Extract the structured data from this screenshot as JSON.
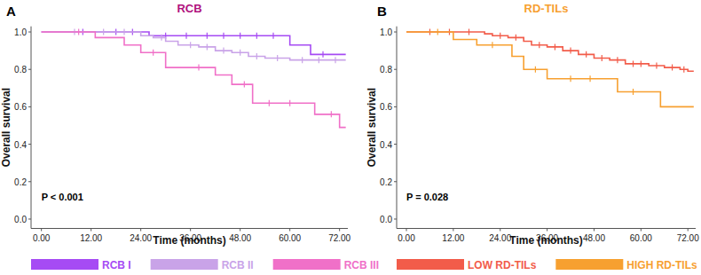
{
  "chart_data": [
    {
      "type": "line",
      "panel": "A",
      "title": "RCB",
      "annotation": "P < 0.001",
      "x_label": "Time (months)",
      "y_label": "Overall survival",
      "xlim": [
        -2.5,
        74
      ],
      "ylim": [
        -0.05,
        1.03
      ],
      "xticks": [
        {
          "value": 0,
          "label": "0.00"
        },
        {
          "value": 12,
          "label": "12.00"
        },
        {
          "value": 24,
          "label": "24.00"
        },
        {
          "value": 36,
          "label": "36.00"
        },
        {
          "value": 48,
          "label": "48.00"
        },
        {
          "value": 60,
          "label": "60.00"
        },
        {
          "value": 72,
          "label": "72.00"
        }
      ],
      "yticks": [
        {
          "value": 0,
          "label": "0.0"
        },
        {
          "value": 0.2,
          "label": "0.2"
        },
        {
          "value": 0.4,
          "label": "0.4"
        },
        {
          "value": 0.6,
          "label": "0.6"
        },
        {
          "value": 0.8,
          "label": "0.8"
        },
        {
          "value": 1,
          "label": "1.0"
        }
      ],
      "grid": false,
      "legend": "bottom",
      "series": [
        {
          "name": "RCB I",
          "color": "#a64bf4",
          "x": [
            0,
            26,
            26,
            60,
            60,
            65,
            65,
            73.5
          ],
          "values": [
            1,
            1,
            0.98,
            0.98,
            0.93,
            0.93,
            0.88,
            0.88
          ],
          "censored": [
            10,
            18,
            22,
            30,
            35,
            40,
            44,
            48,
            52,
            56,
            68
          ]
        },
        {
          "name": "RCB II",
          "color": "#c9a3e8",
          "x": [
            0,
            24,
            24,
            27,
            27,
            30,
            30,
            33,
            33,
            38,
            38,
            42,
            42,
            46,
            46,
            50,
            50,
            54,
            54,
            60,
            60,
            73.5
          ],
          "values": [
            1,
            1,
            0.98,
            0.98,
            0.97,
            0.97,
            0.95,
            0.95,
            0.93,
            0.93,
            0.92,
            0.92,
            0.9,
            0.9,
            0.89,
            0.89,
            0.87,
            0.87,
            0.86,
            0.86,
            0.85,
            0.85
          ],
          "censored": [
            8,
            15,
            20,
            29,
            36,
            40,
            44,
            48,
            52,
            57,
            63,
            67,
            71
          ]
        },
        {
          "name": "RCB III",
          "color": "#f070c8",
          "x": [
            0,
            13,
            13,
            20,
            20,
            24,
            24,
            30,
            30,
            42,
            42,
            46,
            46,
            51,
            51,
            66,
            66,
            72,
            72,
            73.5
          ],
          "values": [
            1,
            1,
            0.97,
            0.97,
            0.93,
            0.93,
            0.89,
            0.89,
            0.81,
            0.81,
            0.77,
            0.77,
            0.72,
            0.72,
            0.62,
            0.62,
            0.56,
            0.56,
            0.49,
            0.49
          ],
          "censored": [
            9,
            27,
            38,
            49,
            55,
            60,
            70
          ]
        }
      ]
    },
    {
      "type": "line",
      "panel": "B",
      "title": "RD-TILs",
      "annotation": "P = 0.028",
      "x_label": "Time (months)",
      "y_label": "Overall survival",
      "xlim": [
        -2.5,
        74
      ],
      "ylim": [
        -0.05,
        1.03
      ],
      "xticks": [
        {
          "value": 0,
          "label": "0.00"
        },
        {
          "value": 12,
          "label": "12.00"
        },
        {
          "value": 24,
          "label": "24.00"
        },
        {
          "value": 36,
          "label": "36.00"
        },
        {
          "value": 48,
          "label": "48.00"
        },
        {
          "value": 60,
          "label": "60.00"
        },
        {
          "value": 72,
          "label": "72.00"
        }
      ],
      "yticks": [
        {
          "value": 0,
          "label": "0.0"
        },
        {
          "value": 0.2,
          "label": "0.2"
        },
        {
          "value": 0.4,
          "label": "0.4"
        },
        {
          "value": 0.6,
          "label": "0.6"
        },
        {
          "value": 0.8,
          "label": "0.8"
        },
        {
          "value": 1,
          "label": "1.0"
        }
      ],
      "grid": false,
      "legend": "bottom",
      "series": [
        {
          "name": "LOW RD-TILs",
          "color": "#f25c4a",
          "x": [
            0,
            20,
            20,
            22,
            22,
            26,
            26,
            30,
            30,
            32,
            32,
            36,
            36,
            40,
            40,
            44,
            44,
            48,
            48,
            52,
            52,
            56,
            56,
            62,
            62,
            66,
            66,
            70,
            70,
            72,
            72,
            73.5
          ],
          "values": [
            1,
            1,
            0.99,
            0.99,
            0.98,
            0.98,
            0.97,
            0.97,
            0.95,
            0.95,
            0.93,
            0.93,
            0.92,
            0.92,
            0.9,
            0.9,
            0.88,
            0.88,
            0.86,
            0.86,
            0.85,
            0.85,
            0.83,
            0.83,
            0.82,
            0.82,
            0.81,
            0.81,
            0.8,
            0.8,
            0.79,
            0.79
          ],
          "censored": [
            6,
            11,
            16,
            24,
            28,
            34,
            38,
            42,
            46,
            50,
            54,
            58,
            60,
            64,
            68,
            71
          ]
        },
        {
          "name": "HIGH RD-TILs",
          "color": "#f7a030",
          "x": [
            0,
            12,
            12,
            18,
            18,
            27,
            27,
            30,
            30,
            36,
            36,
            54,
            54,
            65,
            65,
            73.5
          ],
          "values": [
            1,
            1,
            0.96,
            0.96,
            0.93,
            0.93,
            0.87,
            0.87,
            0.8,
            0.8,
            0.75,
            0.75,
            0.68,
            0.68,
            0.6,
            0.6
          ],
          "censored": [
            8,
            22,
            33,
            42,
            47,
            58
          ]
        }
      ]
    }
  ]
}
